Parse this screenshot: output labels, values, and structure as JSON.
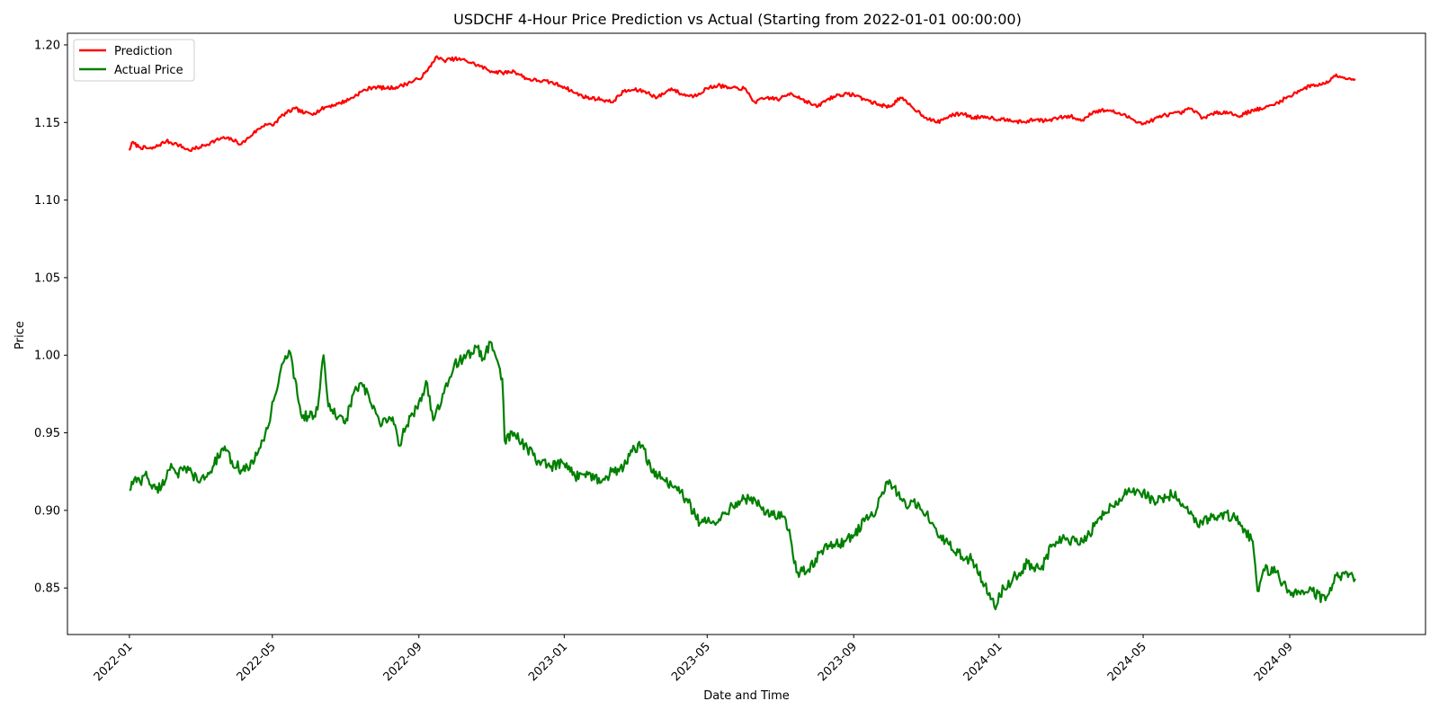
{
  "chart_data": {
    "type": "line",
    "title": "USDCHF 4-Hour Price Prediction vs Actual (Starting from 2022-01-01 00:00:00)",
    "xlabel": "Date and Time",
    "ylabel": "Price",
    "ylim": [
      0.82,
      1.2075
    ],
    "xlim": [
      "2021-11-10",
      "2024-12-24"
    ],
    "y_ticks": [
      0.85,
      0.9,
      0.95,
      1.0,
      1.05,
      1.1,
      1.15,
      1.2
    ],
    "y_tick_labels": [
      "0.85",
      "0.90",
      "0.95",
      "1.00",
      "1.05",
      "1.10",
      "1.15",
      "1.20"
    ],
    "x_ticks": [
      "2022-01-01",
      "2022-05-01",
      "2022-09-01",
      "2023-01-01",
      "2023-05-01",
      "2023-09-01",
      "2024-01-01",
      "2024-05-01",
      "2024-09-01"
    ],
    "x_tick_labels": [
      "2022-01",
      "2022-05",
      "2022-09",
      "2023-01",
      "2023-05",
      "2023-09",
      "2024-01",
      "2024-05",
      "2024-09"
    ],
    "grid": false,
    "legend_position": "top-left",
    "series": [
      {
        "name": "Prediction",
        "color": "#ff0000",
        "points": [
          [
            "2022-01-01",
            1.132
          ],
          [
            "2022-01-03",
            1.137
          ],
          [
            "2022-01-10",
            1.134
          ],
          [
            "2022-01-20",
            1.133
          ],
          [
            "2022-02-01",
            1.138
          ],
          [
            "2022-02-10",
            1.136
          ],
          [
            "2022-02-20",
            1.132
          ],
          [
            "2022-03-01",
            1.134
          ],
          [
            "2022-03-10",
            1.137
          ],
          [
            "2022-03-20",
            1.14
          ],
          [
            "2022-03-28",
            1.139
          ],
          [
            "2022-04-05",
            1.136
          ],
          [
            "2022-04-15",
            1.143
          ],
          [
            "2022-04-25",
            1.149
          ],
          [
            "2022-05-01",
            1.148
          ],
          [
            "2022-05-10",
            1.155
          ],
          [
            "2022-05-20",
            1.159
          ],
          [
            "2022-05-28",
            1.156
          ],
          [
            "2022-06-05",
            1.156
          ],
          [
            "2022-06-15",
            1.16
          ],
          [
            "2022-06-25",
            1.162
          ],
          [
            "2022-07-05",
            1.165
          ],
          [
            "2022-07-15",
            1.17
          ],
          [
            "2022-07-25",
            1.173
          ],
          [
            "2022-08-05",
            1.172
          ],
          [
            "2022-08-15",
            1.173
          ],
          [
            "2022-08-25",
            1.176
          ],
          [
            "2022-09-01",
            1.178
          ],
          [
            "2022-09-08",
            1.183
          ],
          [
            "2022-09-15",
            1.192
          ],
          [
            "2022-09-22",
            1.19
          ],
          [
            "2022-10-01",
            1.191
          ],
          [
            "2022-10-10",
            1.19
          ],
          [
            "2022-10-20",
            1.187
          ],
          [
            "2022-11-01",
            1.183
          ],
          [
            "2022-11-10",
            1.182
          ],
          [
            "2022-11-20",
            1.183
          ],
          [
            "2022-12-01",
            1.178
          ],
          [
            "2022-12-10",
            1.177
          ],
          [
            "2022-12-20",
            1.176
          ],
          [
            "2023-01-01",
            1.173
          ],
          [
            "2023-01-10",
            1.169
          ],
          [
            "2023-01-20",
            1.166
          ],
          [
            "2023-02-01",
            1.165
          ],
          [
            "2023-02-10",
            1.163
          ],
          [
            "2023-02-20",
            1.17
          ],
          [
            "2023-03-01",
            1.171
          ],
          [
            "2023-03-10",
            1.17
          ],
          [
            "2023-03-20",
            1.166
          ],
          [
            "2023-04-01",
            1.172
          ],
          [
            "2023-04-10",
            1.168
          ],
          [
            "2023-04-20",
            1.167
          ],
          [
            "2023-05-01",
            1.172
          ],
          [
            "2023-05-10",
            1.174
          ],
          [
            "2023-05-20",
            1.172
          ],
          [
            "2023-06-01",
            1.172
          ],
          [
            "2023-06-10",
            1.163
          ],
          [
            "2023-06-20",
            1.166
          ],
          [
            "2023-07-01",
            1.165
          ],
          [
            "2023-07-10",
            1.169
          ],
          [
            "2023-07-20",
            1.165
          ],
          [
            "2023-08-01",
            1.16
          ],
          [
            "2023-08-10",
            1.165
          ],
          [
            "2023-08-20",
            1.168
          ],
          [
            "2023-09-01",
            1.168
          ],
          [
            "2023-09-10",
            1.165
          ],
          [
            "2023-09-20",
            1.162
          ],
          [
            "2023-10-01",
            1.16
          ],
          [
            "2023-10-10",
            1.166
          ],
          [
            "2023-10-20",
            1.16
          ],
          [
            "2023-11-01",
            1.153
          ],
          [
            "2023-11-10",
            1.15
          ],
          [
            "2023-11-20",
            1.154
          ],
          [
            "2023-12-01",
            1.156
          ],
          [
            "2023-12-10",
            1.153
          ],
          [
            "2023-12-20",
            1.154
          ],
          [
            "2024-01-01",
            1.152
          ],
          [
            "2024-01-10",
            1.152
          ],
          [
            "2024-01-20",
            1.15
          ],
          [
            "2024-02-01",
            1.152
          ],
          [
            "2024-02-10",
            1.151
          ],
          [
            "2024-02-20",
            1.153
          ],
          [
            "2024-03-01",
            1.154
          ],
          [
            "2024-03-10",
            1.151
          ],
          [
            "2024-03-20",
            1.157
          ],
          [
            "2024-04-01",
            1.158
          ],
          [
            "2024-04-10",
            1.156
          ],
          [
            "2024-04-20",
            1.153
          ],
          [
            "2024-05-01",
            1.149
          ],
          [
            "2024-05-10",
            1.152
          ],
          [
            "2024-05-20",
            1.155
          ],
          [
            "2024-06-01",
            1.156
          ],
          [
            "2024-06-10",
            1.159
          ],
          [
            "2024-06-20",
            1.153
          ],
          [
            "2024-07-01",
            1.156
          ],
          [
            "2024-07-10",
            1.157
          ],
          [
            "2024-07-20",
            1.154
          ],
          [
            "2024-08-01",
            1.158
          ],
          [
            "2024-08-10",
            1.159
          ],
          [
            "2024-08-20",
            1.162
          ],
          [
            "2024-09-01",
            1.167
          ],
          [
            "2024-09-10",
            1.171
          ],
          [
            "2024-09-20",
            1.174
          ],
          [
            "2024-10-01",
            1.175
          ],
          [
            "2024-10-10",
            1.181
          ],
          [
            "2024-10-20",
            1.178
          ],
          [
            "2024-10-26",
            1.178
          ]
        ]
      },
      {
        "name": "Actual Price",
        "color": "#008000",
        "points": [
          [
            "2022-01-01",
            0.913
          ],
          [
            "2022-01-05",
            0.92
          ],
          [
            "2022-01-10",
            0.918
          ],
          [
            "2022-01-15",
            0.925
          ],
          [
            "2022-01-20",
            0.914
          ],
          [
            "2022-01-28",
            0.915
          ],
          [
            "2022-02-05",
            0.93
          ],
          [
            "2022-02-10",
            0.924
          ],
          [
            "2022-02-20",
            0.926
          ],
          [
            "2022-03-01",
            0.918
          ],
          [
            "2022-03-10",
            0.925
          ],
          [
            "2022-03-20",
            0.94
          ],
          [
            "2022-03-28",
            0.932
          ],
          [
            "2022-04-05",
            0.926
          ],
          [
            "2022-04-15",
            0.93
          ],
          [
            "2022-04-20",
            0.94
          ],
          [
            "2022-04-28",
            0.955
          ],
          [
            "2022-05-01",
            0.97
          ],
          [
            "2022-05-05",
            0.978
          ],
          [
            "2022-05-10",
            0.995
          ],
          [
            "2022-05-15",
            1.003
          ],
          [
            "2022-05-20",
            0.985
          ],
          [
            "2022-05-25",
            0.962
          ],
          [
            "2022-06-01",
            0.96
          ],
          [
            "2022-06-08",
            0.965
          ],
          [
            "2022-06-13",
            1.0
          ],
          [
            "2022-06-17",
            0.967
          ],
          [
            "2022-06-25",
            0.96
          ],
          [
            "2022-07-01",
            0.956
          ],
          [
            "2022-07-08",
            0.975
          ],
          [
            "2022-07-15",
            0.982
          ],
          [
            "2022-07-22",
            0.97
          ],
          [
            "2022-08-01",
            0.955
          ],
          [
            "2022-08-10",
            0.96
          ],
          [
            "2022-08-15",
            0.942
          ],
          [
            "2022-08-22",
            0.955
          ],
          [
            "2022-09-01",
            0.97
          ],
          [
            "2022-09-08",
            0.982
          ],
          [
            "2022-09-13",
            0.958
          ],
          [
            "2022-09-20",
            0.97
          ],
          [
            "2022-10-01",
            0.995
          ],
          [
            "2022-10-10",
            0.998
          ],
          [
            "2022-10-20",
            1.005
          ],
          [
            "2022-10-25",
            0.998
          ],
          [
            "2022-11-01",
            1.008
          ],
          [
            "2022-11-05",
            0.998
          ],
          [
            "2022-11-10",
            0.985
          ],
          [
            "2022-11-12",
            0.945
          ],
          [
            "2022-11-20",
            0.95
          ],
          [
            "2022-12-01",
            0.94
          ],
          [
            "2022-12-10",
            0.932
          ],
          [
            "2022-12-20",
            0.928
          ],
          [
            "2023-01-01",
            0.93
          ],
          [
            "2023-01-10",
            0.922
          ],
          [
            "2023-01-20",
            0.925
          ],
          [
            "2023-02-01",
            0.918
          ],
          [
            "2023-02-10",
            0.925
          ],
          [
            "2023-02-20",
            0.928
          ],
          [
            "2023-03-01",
            0.94
          ],
          [
            "2023-03-08",
            0.942
          ],
          [
            "2023-03-15",
            0.925
          ],
          [
            "2023-03-25",
            0.92
          ],
          [
            "2023-04-05",
            0.915
          ],
          [
            "2023-04-15",
            0.905
          ],
          [
            "2023-04-25",
            0.892
          ],
          [
            "2023-05-05",
            0.892
          ],
          [
            "2023-05-15",
            0.898
          ],
          [
            "2023-05-25",
            0.905
          ],
          [
            "2023-06-05",
            0.908
          ],
          [
            "2023-06-15",
            0.902
          ],
          [
            "2023-06-25",
            0.897
          ],
          [
            "2023-07-05",
            0.896
          ],
          [
            "2023-07-10",
            0.882
          ],
          [
            "2023-07-15",
            0.86
          ],
          [
            "2023-07-25",
            0.862
          ],
          [
            "2023-08-05",
            0.874
          ],
          [
            "2023-08-15",
            0.878
          ],
          [
            "2023-08-25",
            0.88
          ],
          [
            "2023-09-01",
            0.884
          ],
          [
            "2023-09-10",
            0.893
          ],
          [
            "2023-09-20",
            0.9
          ],
          [
            "2023-09-28",
            0.918
          ],
          [
            "2023-10-05",
            0.915
          ],
          [
            "2023-10-15",
            0.902
          ],
          [
            "2023-10-25",
            0.905
          ],
          [
            "2023-11-01",
            0.898
          ],
          [
            "2023-11-10",
            0.885
          ],
          [
            "2023-11-20",
            0.878
          ],
          [
            "2023-12-01",
            0.87
          ],
          [
            "2023-12-10",
            0.868
          ],
          [
            "2023-12-20",
            0.852
          ],
          [
            "2023-12-28",
            0.838
          ],
          [
            "2024-01-05",
            0.85
          ],
          [
            "2024-01-15",
            0.858
          ],
          [
            "2024-01-25",
            0.866
          ],
          [
            "2024-02-05",
            0.862
          ],
          [
            "2024-02-15",
            0.878
          ],
          [
            "2024-02-25",
            0.882
          ],
          [
            "2024-03-05",
            0.88
          ],
          [
            "2024-03-15",
            0.883
          ],
          [
            "2024-03-25",
            0.895
          ],
          [
            "2024-04-05",
            0.903
          ],
          [
            "2024-04-15",
            0.91
          ],
          [
            "2024-04-25",
            0.912
          ],
          [
            "2024-05-01",
            0.912
          ],
          [
            "2024-05-10",
            0.906
          ],
          [
            "2024-05-20",
            0.908
          ],
          [
            "2024-05-28",
            0.912
          ],
          [
            "2024-06-05",
            0.902
          ],
          [
            "2024-06-15",
            0.892
          ],
          [
            "2024-06-25",
            0.895
          ],
          [
            "2024-07-05",
            0.898
          ],
          [
            "2024-07-15",
            0.896
          ],
          [
            "2024-07-25",
            0.888
          ],
          [
            "2024-08-01",
            0.88
          ],
          [
            "2024-08-05",
            0.848
          ],
          [
            "2024-08-10",
            0.862
          ],
          [
            "2024-08-20",
            0.86
          ],
          [
            "2024-09-01",
            0.848
          ],
          [
            "2024-09-10",
            0.846
          ],
          [
            "2024-09-20",
            0.848
          ],
          [
            "2024-10-01",
            0.842
          ],
          [
            "2024-10-10",
            0.858
          ],
          [
            "2024-10-20",
            0.857
          ],
          [
            "2024-10-26",
            0.856
          ]
        ]
      }
    ]
  }
}
